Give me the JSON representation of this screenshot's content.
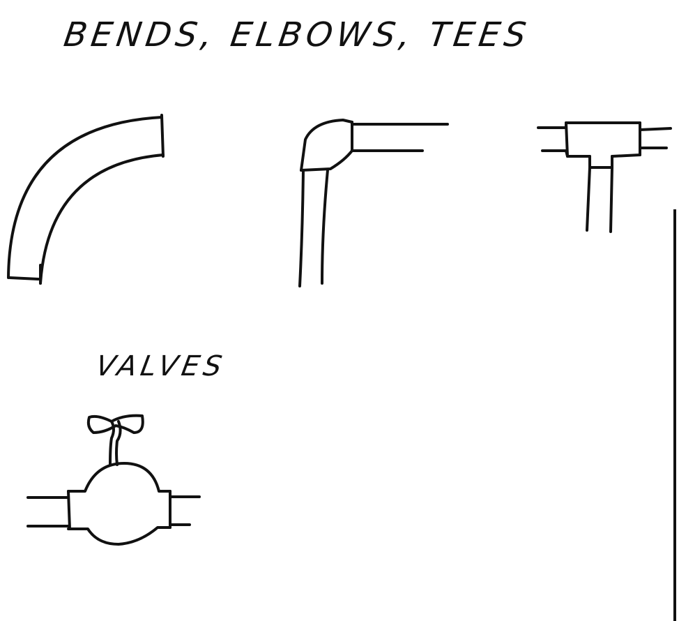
{
  "headings": {
    "fittings": "BENDS, ELBOWS, TEES",
    "valves": "VALVES"
  },
  "figures": [
    {
      "id": "bend",
      "icon": "bend-icon"
    },
    {
      "id": "elbow",
      "icon": "elbow-icon"
    },
    {
      "id": "tee",
      "icon": "tee-icon"
    },
    {
      "id": "valve",
      "icon": "valve-icon"
    }
  ],
  "colors": {
    "ink": "#111111",
    "paper": "#ffffff"
  }
}
